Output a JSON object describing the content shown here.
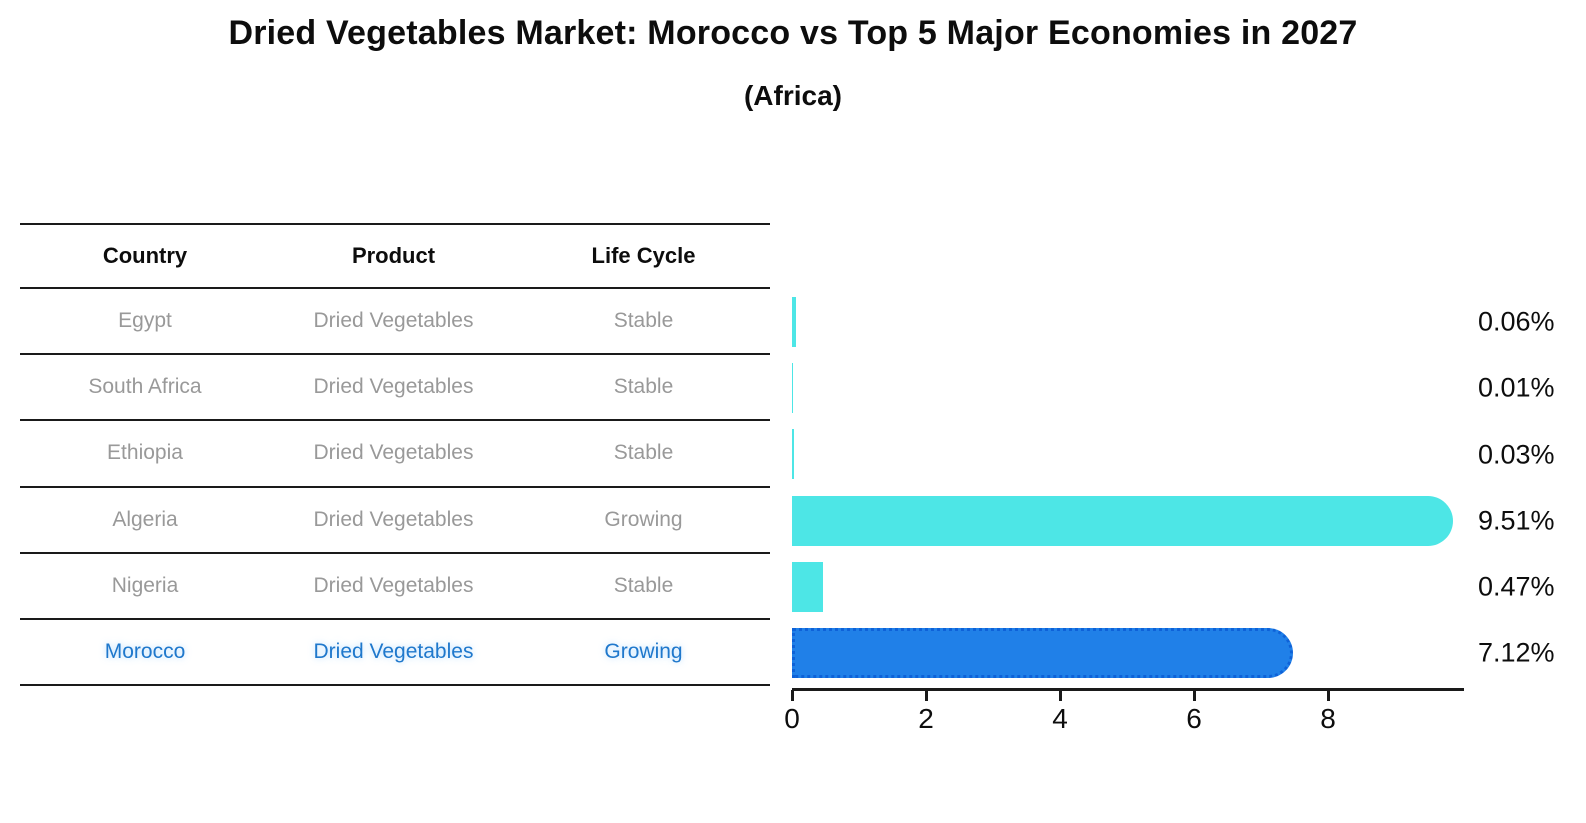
{
  "title": "Dried Vegetables Market: Morocco vs Top 5 Major Economies in 2027",
  "subtitle": "(Africa)",
  "table": {
    "headers": [
      "Country",
      "Product",
      "Life Cycle"
    ],
    "rows": [
      {
        "country": "Egypt",
        "product": "Dried Vegetables",
        "life_cycle": "Stable",
        "highlight": false
      },
      {
        "country": "South Africa",
        "product": "Dried Vegetables",
        "life_cycle": "Stable",
        "highlight": false
      },
      {
        "country": "Ethiopia",
        "product": "Dried Vegetables",
        "life_cycle": "Stable",
        "highlight": false
      },
      {
        "country": "Algeria",
        "product": "Dried Vegetables",
        "life_cycle": "Growing",
        "highlight": false
      },
      {
        "country": "Nigeria",
        "product": "Dried Vegetables",
        "life_cycle": "Stable",
        "highlight": false
      },
      {
        "country": "Morocco",
        "product": "Dried Vegetables",
        "life_cycle": "Growing",
        "highlight": true
      }
    ]
  },
  "chart_data": {
    "type": "bar",
    "orientation": "horizontal",
    "title": "Dried Vegetables Market: Morocco vs Top 5 Major Economies in 2027",
    "subtitle": "(Africa)",
    "categories": [
      "Egypt",
      "South Africa",
      "Ethiopia",
      "Algeria",
      "Nigeria",
      "Morocco"
    ],
    "values": [
      0.06,
      0.01,
      0.03,
      9.51,
      0.47,
      7.12
    ],
    "data_labels": [
      "0.06%",
      "0.01%",
      "0.03%",
      "9.51%",
      "0.47%",
      "7.12%"
    ],
    "xlabel": "",
    "ylabel": "",
    "xlim": [
      0,
      10
    ],
    "xticks": [
      0,
      2,
      4,
      6,
      8
    ],
    "grid": false,
    "legend": false,
    "highlight_index": 5,
    "colors": {
      "bar_default": "#4DE6E6",
      "bar_highlight": "#2080E8",
      "bar_highlight_edge": "#0E62D8",
      "highlight_text": "#1f78cc",
      "table_text": "#999999",
      "heading_text": "#0d0d0d",
      "axis": "#1a1a1a"
    }
  }
}
